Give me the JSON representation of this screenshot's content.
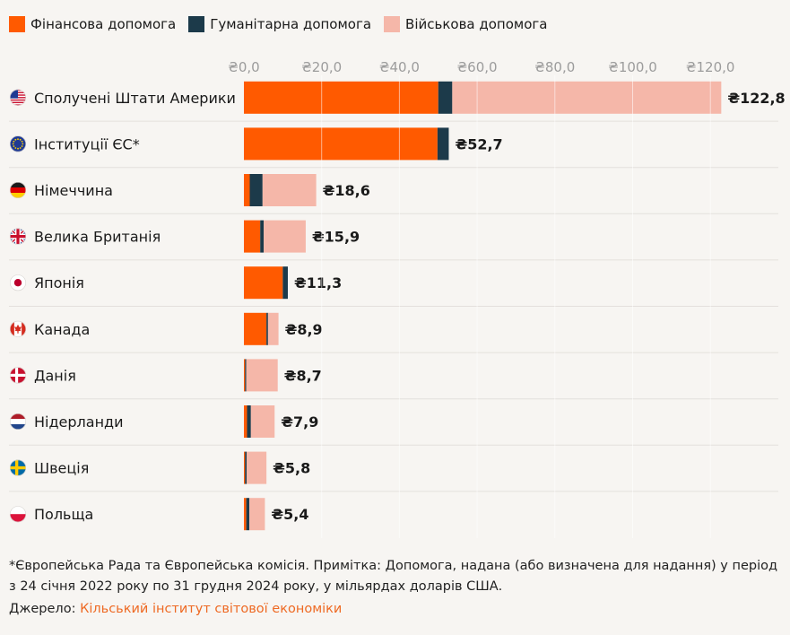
{
  "colors": {
    "financial": "#ff5a00",
    "humanitarian": "#1c3a4a",
    "military": "#f5b7a9",
    "grid": "#ffffff",
    "separator": "#e4e0dc",
    "tick": "#9c9c9c",
    "text": "#1a1a1a"
  },
  "footnote": "*Європейська Рада та Європейська комісія. Примітка: Допомога, надана (або визначена для надання) у період з 24 січня 2022 року по 31 грудня 2024 року, у мільярдах доларів США.",
  "source_label": "Джерело:",
  "source_name": "Кільський інститут світової економіки",
  "chart_data": {
    "type": "bar",
    "orientation": "horizontal",
    "stacked": true,
    "title": "",
    "xlabel": "",
    "ylabel": "",
    "xlim": [
      0,
      125
    ],
    "x_ticks": [
      0,
      20,
      40,
      60,
      80,
      100,
      120
    ],
    "x_tick_labels": [
      "₴0,0",
      "₴20,0",
      "₴40,0",
      "₴60,0",
      "₴80,0",
      "₴100,0",
      "₴120,0"
    ],
    "grid": true,
    "legend_position": "top-left",
    "categories": [
      "Сполучені Штати Америки",
      "Інституції ЄС*",
      "Німеччина",
      "Велика Британія",
      "Японія",
      "Канада",
      "Данія",
      "Нідерланди",
      "Швеція",
      "Польща"
    ],
    "flag_icons": [
      "us-flag-icon",
      "eu-flag-icon",
      "germany-flag-icon",
      "uk-flag-icon",
      "japan-flag-icon",
      "canada-flag-icon",
      "denmark-flag-icon",
      "netherlands-flag-icon",
      "sweden-flag-icon",
      "poland-flag-icon"
    ],
    "series": [
      {
        "name": "Фінансова допомога",
        "color": "#ff5a00",
        "values": [
          50.0,
          49.8,
          1.5,
          4.2,
          10.0,
          5.8,
          0.3,
          0.8,
          0.3,
          0.6
        ]
      },
      {
        "name": "Гуманітарна допомога",
        "color": "#1c3a4a",
        "values": [
          3.6,
          2.9,
          3.3,
          0.9,
          1.3,
          0.4,
          0.3,
          1.0,
          0.4,
          0.8
        ]
      },
      {
        "name": "Військова допомога",
        "color": "#f5b7a9",
        "values": [
          69.2,
          0.0,
          13.8,
          10.8,
          0.0,
          2.7,
          8.1,
          6.1,
          5.1,
          4.0
        ]
      }
    ],
    "total_labels": [
      "₴122,8",
      "₴52,7",
      "₴18,6",
      "₴15,9",
      "₴11,3",
      "₴8,9",
      "₴8,7",
      "₴7,9",
      "₴5,8",
      "₴5,4"
    ]
  }
}
